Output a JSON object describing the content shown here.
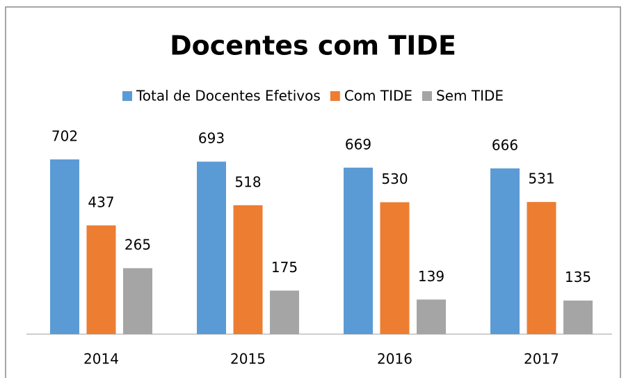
{
  "chart_data": {
    "type": "bar",
    "title": "Docentes com TIDE",
    "categories": [
      "2014",
      "2015",
      "2016",
      "2017"
    ],
    "series": [
      {
        "name": "Total de Docentes Efetivos",
        "color": "#5b9bd5",
        "values": [
          702,
          693,
          669,
          666
        ]
      },
      {
        "name": "Com TIDE",
        "color": "#ed7d31",
        "values": [
          437,
          518,
          530,
          531
        ]
      },
      {
        "name": "Sem TIDE",
        "color": "#a5a5a5",
        "values": [
          265,
          175,
          139,
          135
        ]
      }
    ],
    "legend": "top"
  }
}
